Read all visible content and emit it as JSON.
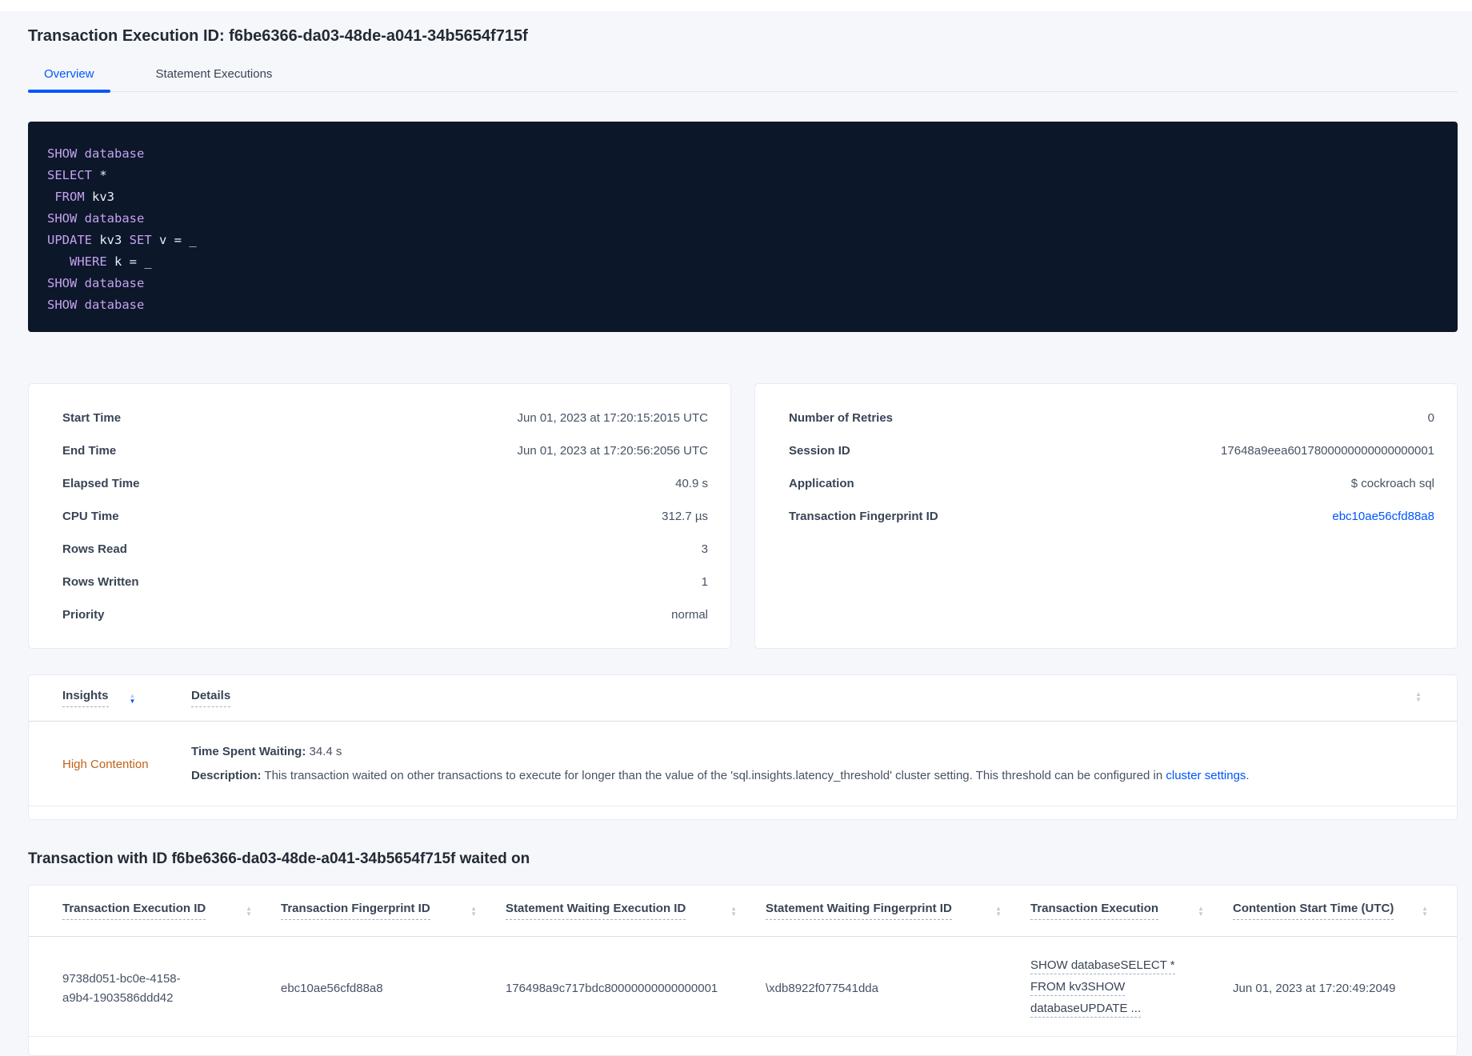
{
  "page": {
    "title": "Transaction Execution ID: f6be6366-da03-48de-a041-34b5654f715f",
    "tabs": [
      {
        "label": "Overview",
        "active": true
      },
      {
        "label": "Statement Executions",
        "active": false
      }
    ]
  },
  "sql_box": {
    "lines": [
      [
        {
          "k": true,
          "t": "SHOW database"
        }
      ],
      [
        {
          "k": true,
          "t": "SELECT"
        },
        {
          "k": false,
          "t": " *"
        }
      ],
      [
        {
          "k": false,
          "t": " "
        },
        {
          "k": true,
          "t": "FROM"
        },
        {
          "k": false,
          "t": " kv3"
        }
      ],
      [
        {
          "k": true,
          "t": "SHOW database"
        }
      ],
      [
        {
          "k": true,
          "t": "UPDATE"
        },
        {
          "k": false,
          "t": " kv3 "
        },
        {
          "k": true,
          "t": "SET"
        },
        {
          "k": false,
          "t": " v = _"
        }
      ],
      [
        {
          "k": false,
          "t": "   "
        },
        {
          "k": true,
          "t": "WHERE"
        },
        {
          "k": false,
          "t": " k = _"
        }
      ],
      [
        {
          "k": true,
          "t": "SHOW database"
        }
      ],
      [
        {
          "k": true,
          "t": "SHOW database"
        }
      ]
    ]
  },
  "summary_left": {
    "rows": [
      {
        "label": "Start Time",
        "value": "Jun 01, 2023 at 17:20:15:2015 UTC"
      },
      {
        "label": "End Time",
        "value": "Jun 01, 2023 at 17:20:56:2056 UTC"
      },
      {
        "label": "Elapsed Time",
        "value": "40.9 s"
      },
      {
        "label": "CPU Time",
        "value": "312.7 µs"
      },
      {
        "label": "Rows Read",
        "value": "3"
      },
      {
        "label": "Rows Written",
        "value": "1"
      },
      {
        "label": "Priority",
        "value": "normal"
      }
    ]
  },
  "summary_right": {
    "rows": [
      {
        "label": "Number of Retries",
        "value": "0"
      },
      {
        "label": "Session ID",
        "value": "17648a9eea6017800000000000000001"
      },
      {
        "label": "Application",
        "value": "$ cockroach sql"
      },
      {
        "label": "Transaction Fingerprint ID",
        "value": "ebc10ae56cfd88a8",
        "link": true
      }
    ]
  },
  "insights_table": {
    "columns": [
      "Insights",
      "Details"
    ],
    "sort": {
      "column": "Insights",
      "direction": "desc"
    },
    "row": {
      "insight": "High Contention",
      "time_spent_waiting_label": "Time Spent Waiting:",
      "time_spent_waiting_value": "34.4 s",
      "description_label": "Description:",
      "description_text": "This transaction waited on other transactions to execute for longer than the value of the 'sql.insights.latency_threshold' cluster setting. This threshold can be configured in",
      "description_link": "cluster settings",
      "description_suffix": "."
    }
  },
  "waited_on": {
    "heading": "Transaction with ID f6be6366-da03-48de-a041-34b5654f715f waited on",
    "columns": [
      "Transaction Execution ID",
      "Transaction Fingerprint ID",
      "Statement Waiting Execution ID",
      "Statement Waiting Fingerprint ID",
      "Transaction Execution",
      "Contention Start Time (UTC)"
    ],
    "row": {
      "transaction_execution_id": "9738d051-bc0e-4158-a9b4-1903586ddd42",
      "transaction_fingerprint_id": "ebc10ae56cfd88a8",
      "statement_waiting_execution_id": "176498a9c717bdc80000000000000001",
      "statement_waiting_fingerprint_id": "\\xdb8922f077541dda",
      "transaction_execution_lines": [
        "SHOW databaseSELECT *",
        "FROM kv3SHOW",
        "databaseUPDATE ..."
      ],
      "contention_start_time": "Jun 01, 2023 at 17:20:49:2049"
    }
  },
  "colors": {
    "accent_blue": "#0055ff",
    "insight_warning_orange": "#bf6318",
    "code_background": "#0c1729",
    "code_keyword": "#c3a2ef",
    "page_background": "#f5f7fa"
  }
}
